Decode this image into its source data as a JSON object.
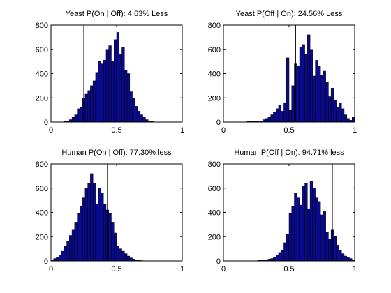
{
  "colors": {
    "bar_fill": "#0a0a8c",
    "bar_edge": "#000000",
    "axes": "#000000",
    "marker_line": "#000000",
    "background": "#ffffff"
  },
  "chart_data": [
    {
      "type": "bar",
      "title": "Yeast P(On | Off):  4.63% Less",
      "xlim": [
        0,
        1
      ],
      "ylim": [
        0,
        800
      ],
      "xticks": [
        "0",
        "0.5",
        "1"
      ],
      "yticks": [
        "0",
        "200",
        "400",
        "600",
        "800"
      ],
      "bin_width": 0.02,
      "bin_centers": [
        0.01,
        0.03,
        0.05,
        0.07,
        0.09,
        0.11,
        0.13,
        0.15,
        0.17,
        0.19,
        0.21,
        0.23,
        0.25,
        0.27,
        0.29,
        0.31,
        0.33,
        0.35,
        0.37,
        0.39,
        0.41,
        0.43,
        0.45,
        0.47,
        0.49,
        0.51,
        0.53,
        0.55,
        0.57,
        0.59,
        0.61,
        0.63,
        0.65,
        0.67,
        0.69,
        0.71,
        0.73,
        0.75,
        0.77,
        0.79,
        0.81,
        0.83,
        0.85,
        0.87,
        0.89,
        0.91,
        0.93,
        0.95,
        0.97,
        0.99
      ],
      "values": [
        0,
        0,
        0,
        0,
        0,
        5,
        10,
        20,
        40,
        60,
        110,
        120,
        200,
        230,
        260,
        300,
        340,
        410,
        500,
        480,
        510,
        600,
        630,
        500,
        680,
        740,
        560,
        620,
        430,
        400,
        250,
        200,
        130,
        90,
        60,
        40,
        20,
        10,
        5,
        0,
        0,
        0,
        0,
        0,
        0,
        0,
        0,
        0,
        0,
        0
      ],
      "marker_x": 0.25
    },
    {
      "type": "bar",
      "title": "Yeast P(Off | On):  24.56% Less",
      "xlim": [
        0,
        1
      ],
      "ylim": [
        0,
        800
      ],
      "xticks": [
        "0",
        "0.5",
        "1"
      ],
      "yticks": [
        "0",
        "200",
        "400",
        "600",
        "800"
      ],
      "bin_width": 0.02,
      "bin_centers": [
        0.01,
        0.03,
        0.05,
        0.07,
        0.09,
        0.11,
        0.13,
        0.15,
        0.17,
        0.19,
        0.21,
        0.23,
        0.25,
        0.27,
        0.29,
        0.31,
        0.33,
        0.35,
        0.37,
        0.39,
        0.41,
        0.43,
        0.45,
        0.47,
        0.49,
        0.51,
        0.53,
        0.55,
        0.57,
        0.59,
        0.61,
        0.63,
        0.65,
        0.67,
        0.69,
        0.71,
        0.73,
        0.75,
        0.77,
        0.79,
        0.81,
        0.83,
        0.85,
        0.87,
        0.89,
        0.91,
        0.93,
        0.95,
        0.97,
        0.99
      ],
      "values": [
        0,
        0,
        0,
        0,
        0,
        0,
        0,
        0,
        0,
        5,
        5,
        5,
        5,
        10,
        10,
        20,
        30,
        40,
        60,
        80,
        110,
        140,
        90,
        160,
        530,
        100,
        300,
        480,
        460,
        620,
        640,
        560,
        720,
        600,
        380,
        510,
        460,
        390,
        420,
        330,
        210,
        280,
        180,
        120,
        160,
        110,
        60,
        30,
        15,
        40
      ],
      "marker_x": 0.55
    },
    {
      "type": "bar",
      "title": "Human P(On | Off):  77.30% less",
      "xlim": [
        0,
        1
      ],
      "ylim": [
        0,
        800
      ],
      "xticks": [
        "0",
        "0.5",
        "1"
      ],
      "yticks": [
        "0",
        "200",
        "400",
        "600",
        "800"
      ],
      "bin_width": 0.02,
      "bin_centers": [
        0.01,
        0.03,
        0.05,
        0.07,
        0.09,
        0.11,
        0.13,
        0.15,
        0.17,
        0.19,
        0.21,
        0.23,
        0.25,
        0.27,
        0.29,
        0.31,
        0.33,
        0.35,
        0.37,
        0.39,
        0.41,
        0.43,
        0.45,
        0.47,
        0.49,
        0.51,
        0.53,
        0.55,
        0.57,
        0.59,
        0.61,
        0.63,
        0.65,
        0.67,
        0.69,
        0.71,
        0.73,
        0.75,
        0.77,
        0.79,
        0.81,
        0.83,
        0.85,
        0.87,
        0.89,
        0.91,
        0.93,
        0.95,
        0.97,
        0.99
      ],
      "values": [
        10,
        20,
        30,
        50,
        80,
        120,
        160,
        210,
        260,
        320,
        390,
        450,
        520,
        600,
        640,
        720,
        640,
        470,
        600,
        560,
        470,
        420,
        390,
        320,
        230,
        120,
        100,
        80,
        60,
        40,
        25,
        15,
        10,
        5,
        3,
        0,
        0,
        0,
        0,
        0,
        0,
        0,
        0,
        0,
        0,
        0,
        0,
        0,
        0,
        0
      ],
      "marker_x": 0.43
    },
    {
      "type": "bar",
      "title": "Human P(Off | On):  94.71% less",
      "xlim": [
        0,
        1
      ],
      "ylim": [
        0,
        800
      ],
      "xticks": [
        "0",
        "0.5",
        "1"
      ],
      "yticks": [
        "0",
        "200",
        "400",
        "600",
        "800"
      ],
      "bin_width": 0.02,
      "bin_centers": [
        0.01,
        0.03,
        0.05,
        0.07,
        0.09,
        0.11,
        0.13,
        0.15,
        0.17,
        0.19,
        0.21,
        0.23,
        0.25,
        0.27,
        0.29,
        0.31,
        0.33,
        0.35,
        0.37,
        0.39,
        0.41,
        0.43,
        0.45,
        0.47,
        0.49,
        0.51,
        0.53,
        0.55,
        0.57,
        0.59,
        0.61,
        0.63,
        0.65,
        0.67,
        0.69,
        0.71,
        0.73,
        0.75,
        0.77,
        0.79,
        0.81,
        0.83,
        0.85,
        0.87,
        0.89,
        0.91,
        0.93,
        0.95,
        0.97,
        0.99
      ],
      "values": [
        0,
        0,
        0,
        0,
        0,
        0,
        0,
        0,
        0,
        0,
        0,
        0,
        0,
        5,
        5,
        10,
        10,
        15,
        20,
        30,
        50,
        70,
        90,
        150,
        220,
        390,
        450,
        560,
        520,
        460,
        620,
        640,
        430,
        660,
        600,
        520,
        490,
        380,
        410,
        240,
        180,
        260,
        200,
        130,
        90,
        60,
        40,
        30,
        20,
        10
      ],
      "marker_x": 0.83
    }
  ]
}
